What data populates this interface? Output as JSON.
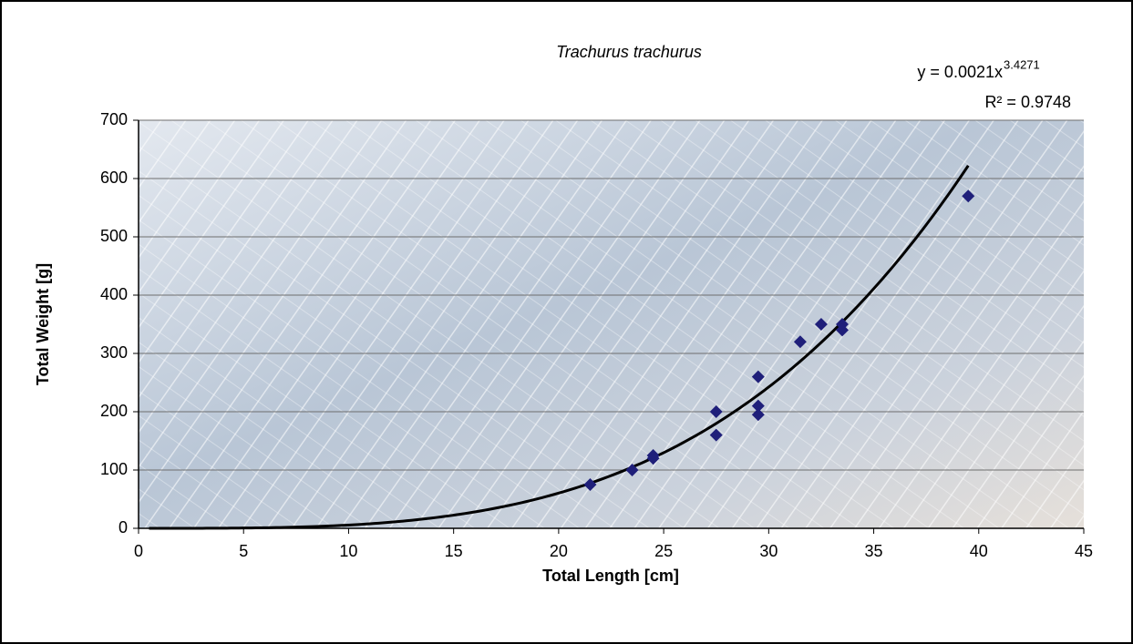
{
  "chart_data": {
    "type": "scatter",
    "title": "Trachurus trachurus",
    "x_label": "Total Length [cm]",
    "y_label": "Total Weight [g]",
    "series": [
      {
        "color": "#1f1f7a",
        "x": [
          21.5,
          23.5,
          24.5,
          24.5,
          27.5,
          27.5,
          29.5,
          29.5,
          29.5,
          31.5,
          32.5,
          33.5,
          33.5,
          39.5
        ],
        "values": [
          75,
          100,
          125,
          120,
          200,
          160,
          260,
          210,
          195,
          320,
          350,
          350,
          340,
          570
        ]
      }
    ],
    "trendline": {
      "type": "power",
      "coefficient": 0.0021,
      "exponent": 3.4271,
      "x_range": [
        0.5,
        39.5
      ],
      "color": "#000000",
      "label": "y = 0.0021x",
      "r_squared_label": "R² = 0.9748"
    },
    "xlim": [
      0,
      45
    ],
    "xticks": [
      0,
      5,
      10,
      15,
      20,
      25,
      30,
      35,
      40,
      45
    ],
    "ylim": [
      0,
      700
    ],
    "yticks": [
      0,
      100,
      200,
      300,
      400,
      500,
      600,
      700
    ],
    "grid": true
  }
}
